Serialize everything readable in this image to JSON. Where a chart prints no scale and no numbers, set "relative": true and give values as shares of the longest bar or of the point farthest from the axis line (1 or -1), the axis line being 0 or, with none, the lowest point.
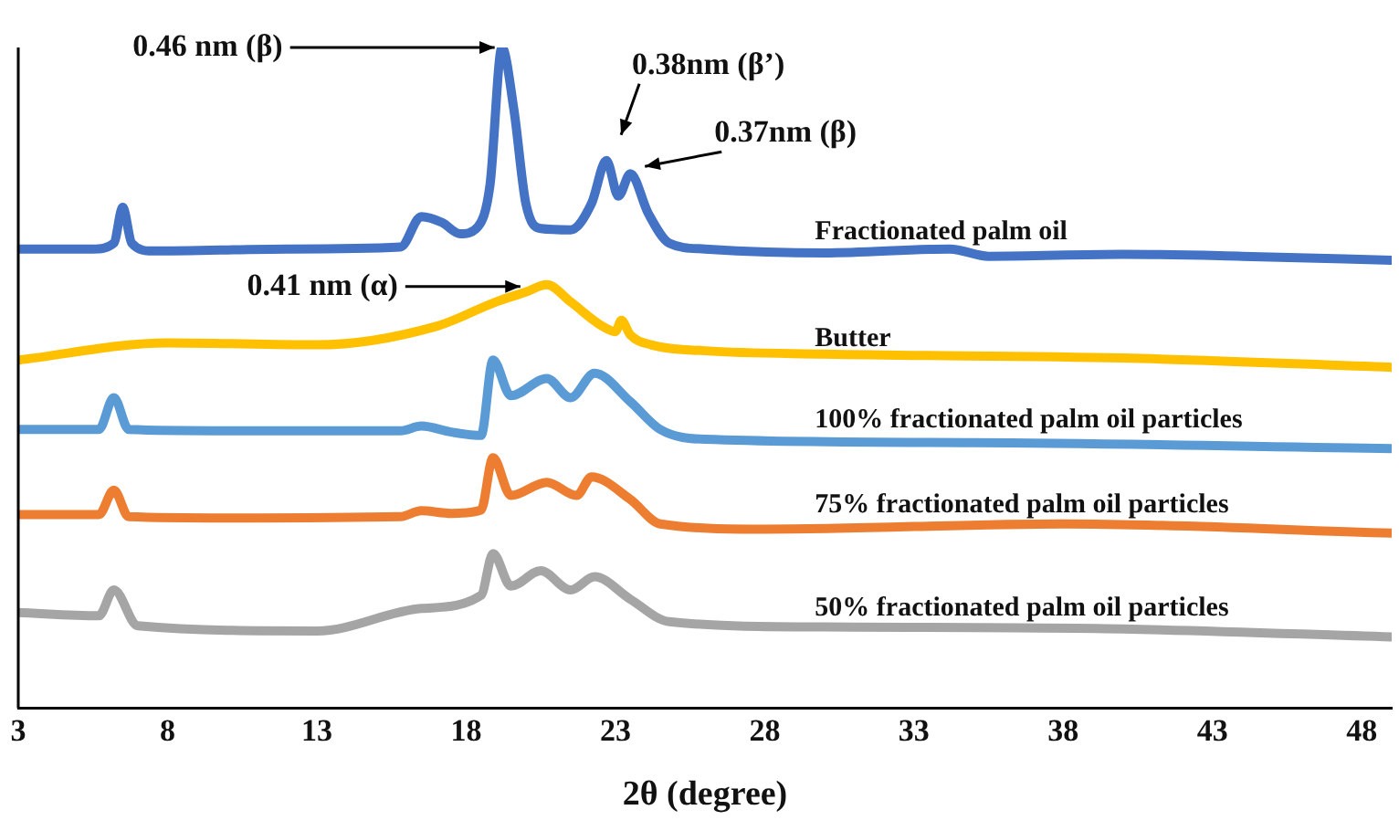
{
  "chart_data": {
    "type": "line",
    "relative": true,
    "xlabel": "2θ (degree)",
    "xlim": [
      3,
      49
    ],
    "xticks": [
      3,
      8,
      13,
      18,
      23,
      28,
      33,
      38,
      43,
      48
    ],
    "grid": false,
    "legend": false,
    "marker": "none",
    "line_style": "solid",
    "annotations": [
      {
        "text": "0.46 nm (β)",
        "x": 19.2,
        "y": 1
      },
      {
        "text": "0.38nm (β’)",
        "x": 22.7,
        "y": 0.829
      },
      {
        "text": "0.37nm (β)",
        "x": 23.5,
        "y": 0.809
      },
      {
        "text": "0.41 nm (α)",
        "x": 20,
        "y": 0.63
      }
    ],
    "series": [
      {
        "name": "Fractionated palm oil",
        "color": "#4472c4",
        "x": [
          3,
          5.5,
          6.2,
          6.5,
          6.8,
          7.5,
          12,
          15.8,
          16.5,
          17.2,
          17.8,
          18.4,
          18.8,
          19.2,
          19.6,
          20,
          20.5,
          21.5,
          22.2,
          22.7,
          23.1,
          23.5,
          24.1,
          24.8,
          26,
          30,
          34.2,
          35.5,
          40,
          44,
          49
        ],
        "values": [
          0.695,
          0.695,
          0.704,
          0.758,
          0.704,
          0.692,
          0.695,
          0.698,
          0.744,
          0.735,
          0.718,
          0.729,
          0.792,
          1,
          0.906,
          0.764,
          0.726,
          0.724,
          0.764,
          0.829,
          0.775,
          0.809,
          0.749,
          0.704,
          0.695,
          0.689,
          0.695,
          0.684,
          0.687,
          0.684,
          0.678
        ]
      },
      {
        "name": "Butter",
        "color": "#ffc000",
        "x": [
          3,
          8,
          13,
          17,
          19,
          20,
          20.7,
          21.5,
          22.5,
          23,
          23.2,
          23.5,
          24.2,
          26,
          30,
          40,
          49
        ],
        "values": [
          0.527,
          0.553,
          0.55,
          0.578,
          0.615,
          0.63,
          0.641,
          0.615,
          0.58,
          0.57,
          0.587,
          0.565,
          0.55,
          0.541,
          0.536,
          0.53,
          0.516
        ]
      },
      {
        "name": "100% fractionated palm oil particles",
        "color": "#5b9bd5",
        "x": [
          3,
          5.7,
          6.2,
          6.7,
          10,
          15.8,
          16.5,
          17.5,
          18.5,
          18.9,
          19.5,
          20.7,
          21.5,
          22.3,
          23.5,
          24.5,
          26,
          35,
          49
        ],
        "values": [
          0.422,
          0.422,
          0.47,
          0.422,
          0.42,
          0.42,
          0.427,
          0.418,
          0.413,
          0.527,
          0.473,
          0.499,
          0.47,
          0.507,
          0.464,
          0.422,
          0.407,
          0.402,
          0.393
        ]
      },
      {
        "name": "75% fractionated palm oil particles",
        "color": "#ed7d31",
        "x": [
          3,
          5.7,
          6.2,
          6.7,
          10,
          15.8,
          16.5,
          17.5,
          18.5,
          18.9,
          19.5,
          20.7,
          21.7,
          22.2,
          23.5,
          24.5,
          28,
          38,
          49
        ],
        "values": [
          0.293,
          0.293,
          0.33,
          0.29,
          0.288,
          0.29,
          0.299,
          0.295,
          0.3,
          0.379,
          0.322,
          0.342,
          0.322,
          0.35,
          0.316,
          0.279,
          0.271,
          0.279,
          0.265
        ]
      },
      {
        "name": "50% fractionated palm oil particles",
        "color": "#a5a5a5",
        "x": [
          3,
          5.7,
          6.2,
          7,
          13,
          16.5,
          18.5,
          18.9,
          19.5,
          20.5,
          21.5,
          22.3,
          23.5,
          24.8,
          30,
          40,
          49
        ],
        "values": [
          0.145,
          0.14,
          0.179,
          0.125,
          0.117,
          0.151,
          0.171,
          0.234,
          0.185,
          0.208,
          0.179,
          0.199,
          0.165,
          0.131,
          0.123,
          0.12,
          0.108
        ]
      }
    ]
  }
}
